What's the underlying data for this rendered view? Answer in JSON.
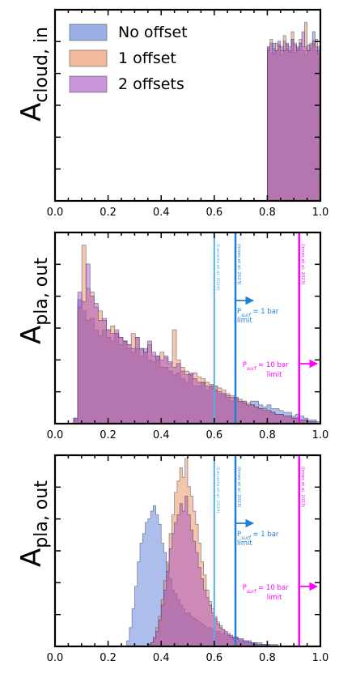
{
  "chart_data": [
    {
      "type": "histogram",
      "ylabel_main": "A",
      "ylabel_sub": "cloud, in",
      "xlim": [
        0.0,
        1.0
      ],
      "xticks": [
        "0.0",
        "0.2",
        "0.4",
        "0.6",
        "0.8",
        "1.0"
      ],
      "legend": {
        "placement": "top-left",
        "entries": [
          "No offset",
          "1 offset",
          "2 offsets"
        ]
      },
      "bin_start": 0.8,
      "bin_width": 0.01,
      "series": [
        {
          "name": "No offset",
          "color": "#4a6fd4",
          "values": [
            0.82,
            0.79,
            0.84,
            0.8,
            0.83,
            0.78,
            0.85,
            0.81,
            0.8,
            0.86,
            0.79,
            0.82,
            0.84,
            0.8,
            0.78,
            0.83,
            0.81,
            0.9,
            0.8,
            0.82
          ]
        },
        {
          "name": "1 offset",
          "color": "#e6824a",
          "values": [
            0.8,
            0.86,
            0.78,
            0.84,
            0.82,
            0.8,
            0.88,
            0.83,
            0.79,
            0.9,
            0.84,
            0.8,
            0.86,
            0.82,
            0.95,
            0.8,
            0.84,
            0.83,
            0.86,
            0.78
          ]
        },
        {
          "name": "2 offsets",
          "color": "#a040c0",
          "values": [
            0.82,
            0.84,
            0.81,
            0.8,
            0.85,
            0.82,
            0.8,
            0.84,
            0.82,
            0.86,
            0.83,
            0.81,
            0.84,
            0.9,
            0.82,
            0.8,
            0.83,
            0.85,
            0.82,
            0.8
          ]
        }
      ]
    },
    {
      "type": "histogram",
      "ylabel_main": "A",
      "ylabel_sub": "pla, out",
      "xlim": [
        0.0,
        1.0
      ],
      "xticks": [
        "0.0",
        "0.2",
        "0.4",
        "0.6",
        "0.8",
        "1.0"
      ],
      "bin_start": 0.07,
      "bin_width": 0.0155,
      "series": [
        {
          "name": "No offset",
          "color": "#4a6fd4",
          "values": [
            0.03,
            0.66,
            0.6,
            0.55,
            0.56,
            0.5,
            0.47,
            0.5,
            0.46,
            0.44,
            0.48,
            0.42,
            0.44,
            0.4,
            0.38,
            0.4,
            0.36,
            0.4,
            0.34,
            0.33,
            0.36,
            0.3,
            0.3,
            0.28,
            0.26,
            0.27,
            0.24,
            0.22,
            0.26,
            0.2,
            0.2,
            0.22,
            0.18,
            0.2,
            0.2,
            0.16,
            0.16,
            0.14,
            0.12,
            0.14,
            0.12,
            0.12,
            0.1,
            0.12,
            0.12,
            0.1,
            0.09,
            0.1,
            0.08,
            0.08,
            0.07,
            0.06,
            0.06,
            0.04,
            0.05,
            0.04,
            0.03,
            0.02,
            0.02,
            0.01
          ]
        },
        {
          "name": "1 offset",
          "color": "#e6824a",
          "values": [
            0.02,
            0.62,
            0.95,
            0.72,
            0.7,
            0.62,
            0.6,
            0.55,
            0.5,
            0.52,
            0.48,
            0.46,
            0.44,
            0.42,
            0.48,
            0.46,
            0.4,
            0.38,
            0.42,
            0.36,
            0.34,
            0.38,
            0.35,
            0.32,
            0.5,
            0.34,
            0.3,
            0.28,
            0.26,
            0.27,
            0.25,
            0.24,
            0.22,
            0.21,
            0.2,
            0.19,
            0.18,
            0.16,
            0.15,
            0.14,
            0.13,
            0.12,
            0.11,
            0.1,
            0.09,
            0.08,
            0.08,
            0.07,
            0.06,
            0.05,
            0.05,
            0.04,
            0.04,
            0.03,
            0.03,
            0.02,
            0.02,
            0.01,
            0.01,
            0.0
          ]
        },
        {
          "name": "2 offsets",
          "color": "#a040c0",
          "values": [
            0.03,
            0.7,
            0.65,
            0.85,
            0.68,
            0.64,
            0.55,
            0.56,
            0.5,
            0.48,
            0.5,
            0.46,
            0.44,
            0.42,
            0.4,
            0.46,
            0.4,
            0.38,
            0.44,
            0.38,
            0.36,
            0.34,
            0.36,
            0.33,
            0.3,
            0.32,
            0.28,
            0.26,
            0.27,
            0.24,
            0.22,
            0.22,
            0.2,
            0.2,
            0.18,
            0.17,
            0.16,
            0.15,
            0.14,
            0.13,
            0.12,
            0.11,
            0.1,
            0.1,
            0.09,
            0.08,
            0.07,
            0.07,
            0.06,
            0.05,
            0.05,
            0.04,
            0.04,
            0.03,
            0.03,
            0.02,
            0.02,
            0.01,
            0.01,
            0.0
          ]
        }
      ],
      "reference_lines": [
        {
          "x": 0.6,
          "color": "#5aaee6",
          "label": "(Lacunta et al. 2024)"
        },
        {
          "x": 0.68,
          "color": "#1e7fd6",
          "label": "(Innes et al. 2023)",
          "arrow_label": "P",
          "arrow_sub": "surf",
          "arrow_rest": " = 1 bar",
          "arrow_line2": "limit"
        },
        {
          "x": 0.92,
          "color": "#ff00ff",
          "label": "(Innes et al. 2023)",
          "arrow_label": "P",
          "arrow_sub": "surf",
          "arrow_rest": " = 10 bar",
          "arrow_line2": "limit"
        }
      ]
    },
    {
      "type": "histogram",
      "ylabel_main": "A",
      "ylabel_sub": "pla, out",
      "xlim": [
        0.0,
        1.0
      ],
      "xticks": [
        "0.0",
        "0.2",
        "0.4",
        "0.6",
        "0.8",
        "1.0"
      ],
      "bin_start": 0.27,
      "bin_width": 0.01,
      "series": [
        {
          "name": "No offset",
          "color": "#4a6fd4",
          "values": [
            0.03,
            0.1,
            0.2,
            0.32,
            0.45,
            0.55,
            0.6,
            0.66,
            0.68,
            0.72,
            0.75,
            0.7,
            0.65,
            0.55,
            0.5,
            0.44,
            0.36,
            0.3,
            0.28,
            0.25,
            0.22,
            0.2,
            0.18,
            0.18,
            0.16,
            0.15,
            0.14,
            0.13,
            0.12,
            0.11,
            0.1,
            0.1,
            0.09,
            0.08,
            0.08,
            0.07,
            0.07,
            0.06,
            0.06,
            0.05,
            0.05,
            0.05,
            0.04,
            0.04,
            0.03,
            0.03,
            0.03,
            0.02,
            0.02,
            0.02,
            0.02,
            0.01,
            0.01,
            0.01,
            0.01,
            0.01,
            0.01,
            0.0,
            0.0,
            0.0
          ]
        },
        {
          "name": "1 offset",
          "color": "#e6824a",
          "values": [
            0.0,
            0.0,
            0.0,
            0.0,
            0.0,
            0.0,
            0.0,
            0.0,
            0.01,
            0.02,
            0.05,
            0.1,
            0.16,
            0.25,
            0.35,
            0.45,
            0.6,
            0.7,
            0.82,
            0.88,
            0.95,
            0.9,
            1.0,
            0.85,
            0.8,
            0.72,
            0.65,
            0.55,
            0.45,
            0.38,
            0.3,
            0.24,
            0.2,
            0.16,
            0.13,
            0.11,
            0.09,
            0.07,
            0.06,
            0.05,
            0.04,
            0.04,
            0.03,
            0.03,
            0.02,
            0.02,
            0.02,
            0.01,
            0.01,
            0.01,
            0.01,
            0.01,
            0.0,
            0.0,
            0.0,
            0.0,
            0.0,
            0.0,
            0.0,
            0.0
          ]
        },
        {
          "name": "2 offsets",
          "color": "#a040c0",
          "values": [
            0.0,
            0.0,
            0.0,
            0.0,
            0.0,
            0.0,
            0.0,
            0.0,
            0.01,
            0.02,
            0.04,
            0.08,
            0.14,
            0.22,
            0.3,
            0.4,
            0.52,
            0.6,
            0.66,
            0.7,
            0.76,
            0.72,
            0.8,
            0.7,
            0.62,
            0.56,
            0.5,
            0.42,
            0.36,
            0.3,
            0.26,
            0.22,
            0.18,
            0.15,
            0.12,
            0.1,
            0.09,
            0.08,
            0.07,
            0.06,
            0.05,
            0.05,
            0.04,
            0.04,
            0.03,
            0.03,
            0.02,
            0.02,
            0.02,
            0.01,
            0.01,
            0.01,
            0.01,
            0.01,
            0.0,
            0.0,
            0.0,
            0.0,
            0.0,
            0.0
          ]
        }
      ],
      "reference_lines": [
        {
          "x": 0.6,
          "color": "#5aaee6",
          "label": "(Lacunta et al. 2024)"
        },
        {
          "x": 0.68,
          "color": "#1e7fd6",
          "label": "(Innes et al. 2023)",
          "arrow_label": "P",
          "arrow_sub": "surf",
          "arrow_rest": " = 1 bar",
          "arrow_line2": "limit"
        },
        {
          "x": 0.92,
          "color": "#ff00ff",
          "label": "(Innes et al. 2023)",
          "arrow_label": "P",
          "arrow_sub": "surf",
          "arrow_rest": " = 10 bar",
          "arrow_line2": "limit"
        }
      ]
    }
  ]
}
